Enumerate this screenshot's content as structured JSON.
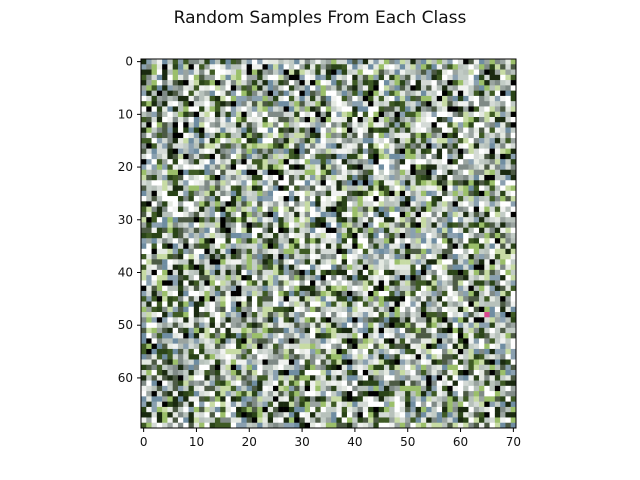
{
  "figure": {
    "title": "Random Samples From Each Class"
  },
  "image": {
    "width": 71,
    "height": 70,
    "seed": 1337,
    "palette": [
      "#ffffff",
      "#ffffff",
      "#f0f2f0",
      "#d4dad6",
      "#c2ccc6",
      "#b7c1bb",
      "#9aa4a0",
      "#7f8a86",
      "#6f8da2",
      "#8aa0b0",
      "#4c5a44",
      "#3e5a24",
      "#2a4418",
      "#1a2a10",
      "#000000",
      "#9bbf6a",
      "#c7dba4",
      "#e4e9e2"
    ],
    "special_pixel": {
      "x": 65,
      "y": 48,
      "color": "#d8478f"
    }
  },
  "axes": {
    "xlim": [
      -0.5,
      70.5
    ],
    "ylim": [
      69.5,
      -0.5
    ],
    "xticks": [
      0,
      10,
      20,
      30,
      40,
      50,
      60,
      70
    ],
    "yticks": [
      0,
      10,
      20,
      30,
      40,
      50,
      60
    ]
  }
}
